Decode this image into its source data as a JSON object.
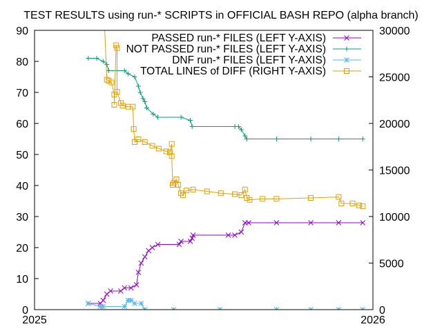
{
  "chart_data": {
    "type": "line",
    "title": "TEST RESULTS using run-* SCRIPTS in OFFICIAL BASH REPO (alpha branch)",
    "xlabel": "",
    "ylabel": "",
    "y2label": "",
    "x_unit": "day of year 2025",
    "xlim": [
      0,
      365
    ],
    "ylim": [
      0,
      90
    ],
    "y2lim": [
      0,
      30000
    ],
    "x_ticks": [
      {
        "value": 0,
        "label": "2025"
      },
      {
        "value": 365,
        "label": "2026"
      }
    ],
    "y_ticks": [
      "0",
      "10",
      "20",
      "30",
      "40",
      "50",
      "60",
      "70",
      "80",
      "90"
    ],
    "y2_ticks": [
      "0",
      "5000",
      "10000",
      "15000",
      "20000",
      "25000",
      "30000"
    ],
    "grid": false,
    "legend_position": "top-right",
    "series": [
      {
        "name": "PASSED run-* FILES (LEFT Y-AXIS)",
        "axis": "left",
        "color": "#9400d3",
        "marker": "x",
        "x": [
          58,
          71,
          74,
          78,
          82,
          93,
          97,
          104,
          110,
          112,
          115,
          119,
          123,
          127,
          133,
          156,
          158,
          168,
          170,
          171,
          209,
          216,
          223,
          227,
          231,
          261,
          298,
          328,
          354
        ],
        "y": [
          2,
          2,
          3,
          5,
          6,
          6,
          7,
          7,
          8,
          12,
          15,
          17,
          19,
          20,
          21,
          21,
          22,
          22,
          23,
          24,
          24,
          24,
          25,
          28,
          28,
          28,
          28,
          28,
          28
        ]
      },
      {
        "name": "NOT PASSED run-* FILES (LEFT Y-AXIS)",
        "axis": "left",
        "color": "#009e73",
        "marker": "plus",
        "x": [
          58,
          67,
          74,
          78,
          80,
          97,
          101,
          108,
          112,
          114,
          117,
          119,
          121,
          128,
          133,
          158,
          168,
          170,
          216,
          220,
          223,
          227,
          229,
          261,
          298,
          328,
          354
        ],
        "y": [
          81,
          81,
          80,
          79,
          77,
          77,
          76,
          75,
          72,
          70,
          68,
          67,
          65,
          63,
          62,
          62,
          61,
          59,
          59,
          59,
          58,
          56,
          55,
          55,
          55,
          55,
          55
        ]
      },
      {
        "name": "DNF run-* FILES (LEFT Y-AXIS)",
        "axis": "left",
        "color": "#56b4e9",
        "marker": "star",
        "x": [
          58,
          71,
          74,
          97,
          101,
          104,
          108,
          115,
          119,
          150,
          200,
          261,
          298,
          328,
          354
        ],
        "y": [
          2,
          1,
          1,
          1,
          3,
          3,
          2,
          2,
          0,
          0,
          0,
          0,
          0,
          0,
          0
        ]
      },
      {
        "name": "TOTAL LINES of DIFF (RIGHT Y-AXIS)",
        "axis": "right",
        "color": "#e69f00",
        "marker": "square",
        "x": [
          74,
          78,
          80,
          83,
          86,
          86,
          88,
          89,
          89,
          93,
          95,
          101,
          106,
          107,
          108,
          112,
          119,
          127,
          134,
          142,
          146,
          148,
          148,
          149,
          150,
          153,
          155,
          158,
          160,
          164,
          171,
          186,
          201,
          216,
          223,
          227,
          229,
          232,
          246,
          261,
          298,
          328,
          331,
          343,
          350,
          354
        ],
        "y": [
          34000,
          24700,
          24600,
          24400,
          23100,
          22000,
          28400,
          28100,
          23400,
          22200,
          21900,
          21800,
          21800,
          19400,
          18000,
          18300,
          18000,
          17600,
          17300,
          17000,
          16900,
          17800,
          16500,
          13400,
          13600,
          14000,
          13400,
          12500,
          12300,
          12800,
          12900,
          12700,
          12500,
          12400,
          12300,
          12900,
          12000,
          11800,
          11900,
          11900,
          12000,
          12100,
          11400,
          11400,
          11200,
          11100
        ]
      }
    ]
  }
}
